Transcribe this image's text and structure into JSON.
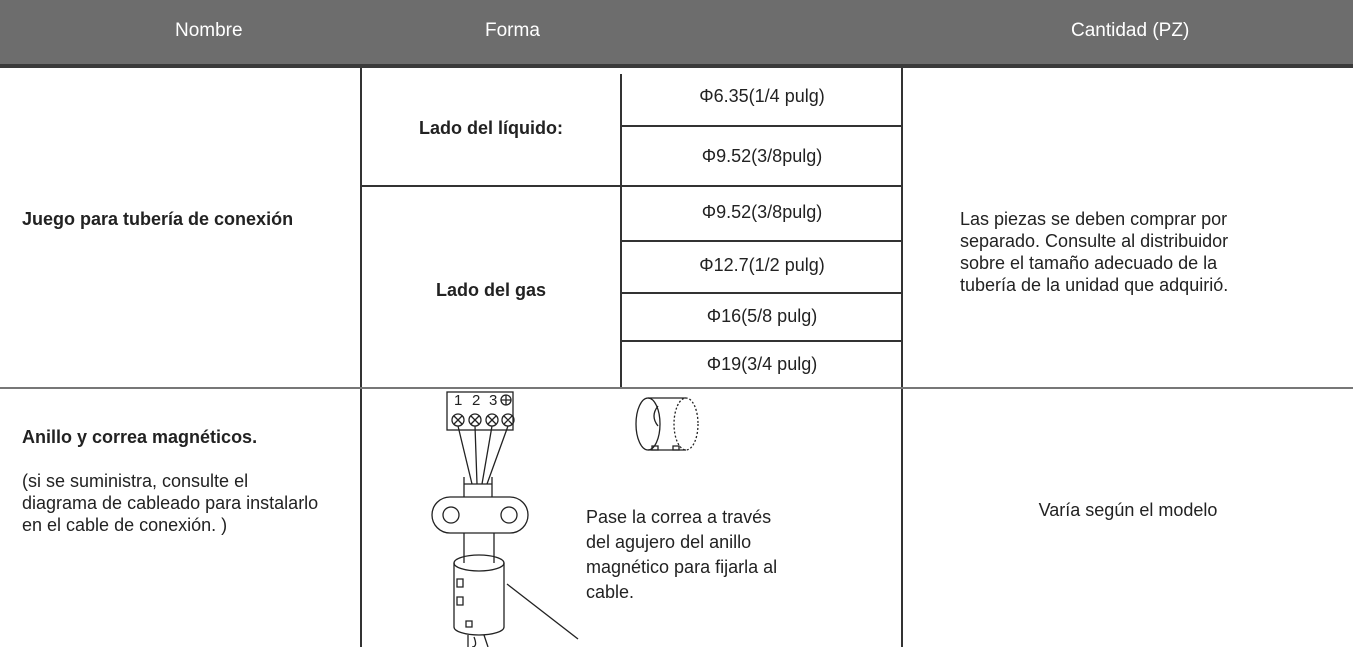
{
  "header": {
    "columns": [
      "Nombre",
      "Forma",
      "Cantidad (PZ)"
    ]
  },
  "rows": [
    {
      "name": "Juego para tubería de conexión",
      "liquid": {
        "label": "Lado del líquido:",
        "sizes": [
          "Φ6.35(1/4 pulg)",
          "Φ9.52(3/8pulg)"
        ]
      },
      "gas": {
        "label": "Lado del gas",
        "sizes": [
          "Φ9.52(3/8pulg)",
          "Φ12.7(1/2 pulg)",
          "Φ16(5/8 pulg)",
          "Φ19(3/4 pulg)"
        ]
      },
      "quantity": "Las piezas se deben comprar por separado. Consulte al distribuidor sobre el tamaño adecuado de la tubería de la unidad que adquirió."
    },
    {
      "name": "Anillo y correa magnéticos.",
      "note": "(si se suministra, consulte el diagrama de cableado para instalarlo en el cable de conexión. )",
      "diagram": {
        "terminals": [
          "1",
          "2",
          "3"
        ],
        "caption": [
          "Pase la correa a través",
          "del agujero del anillo",
          "magnético para fijarla al",
          "cable."
        ]
      },
      "quantity": "Varía según el modelo"
    }
  ]
}
